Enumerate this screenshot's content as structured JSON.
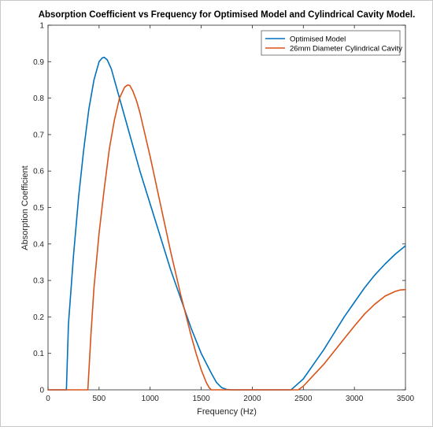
{
  "chart_data": {
    "type": "line",
    "title": "Absorption Coefficient vs Frequency for Optimised Model and Cylindrical Cavity Model.",
    "xlabel": "Frequency (Hz)",
    "ylabel": "Absorption Coefficient",
    "xlim": [
      0,
      3500
    ],
    "ylim": [
      0,
      1
    ],
    "xticks": [
      0,
      500,
      1000,
      1500,
      2000,
      2500,
      3000,
      3500
    ],
    "yticks": [
      0,
      0.1,
      0.2,
      0.3,
      0.4,
      0.5,
      0.6,
      0.7,
      0.8,
      0.9,
      1
    ],
    "xtick_labels": [
      "0",
      "500",
      "1000",
      "1500",
      "2000",
      "2500",
      "3000",
      "3500"
    ],
    "ytick_labels": [
      "0",
      "0.1",
      "0.2",
      "0.3",
      "0.4",
      "0.5",
      "0.6",
      "0.7",
      "0.8",
      "0.9",
      "1"
    ],
    "grid": false,
    "legend_position": "top-right",
    "series": [
      {
        "name": "Optimised Model",
        "color": "#0072BD",
        "x": [
          0,
          150,
          180,
          200,
          250,
          300,
          350,
          400,
          450,
          500,
          530,
          550,
          580,
          620,
          700,
          800,
          900,
          1000,
          1100,
          1200,
          1300,
          1400,
          1500,
          1600,
          1650,
          1700,
          1750,
          1800,
          2000,
          2200,
          2380,
          2400,
          2500,
          2600,
          2700,
          2800,
          2900,
          3000,
          3100,
          3200,
          3300,
          3400,
          3500
        ],
        "y": [
          0,
          0,
          0,
          0.18,
          0.37,
          0.53,
          0.66,
          0.77,
          0.85,
          0.9,
          0.91,
          0.912,
          0.905,
          0.88,
          0.8,
          0.7,
          0.6,
          0.51,
          0.42,
          0.33,
          0.25,
          0.17,
          0.1,
          0.045,
          0.02,
          0.006,
          0.001,
          0,
          0,
          0,
          0,
          0.005,
          0.03,
          0.07,
          0.11,
          0.155,
          0.2,
          0.24,
          0.28,
          0.315,
          0.345,
          0.372,
          0.395
        ]
      },
      {
        "name": "26mm Diameter Cylindrical Cavity",
        "color": "#D95319",
        "x": [
          0,
          380,
          390,
          420,
          450,
          500,
          550,
          600,
          650,
          700,
          750,
          780,
          800,
          830,
          870,
          900,
          1000,
          1100,
          1200,
          1300,
          1400,
          1450,
          1500,
          1550,
          1580,
          1600,
          2000,
          2450,
          2500,
          2600,
          2700,
          2800,
          2900,
          3000,
          3100,
          3200,
          3300,
          3400,
          3450,
          3500
        ],
        "y": [
          0,
          0,
          0,
          0.15,
          0.28,
          0.43,
          0.55,
          0.66,
          0.74,
          0.8,
          0.83,
          0.836,
          0.835,
          0.82,
          0.79,
          0.76,
          0.64,
          0.51,
          0.38,
          0.26,
          0.15,
          0.1,
          0.055,
          0.02,
          0.005,
          0,
          0,
          0,
          0.01,
          0.04,
          0.07,
          0.105,
          0.14,
          0.175,
          0.208,
          0.235,
          0.257,
          0.27,
          0.274,
          0.275
        ]
      }
    ]
  }
}
